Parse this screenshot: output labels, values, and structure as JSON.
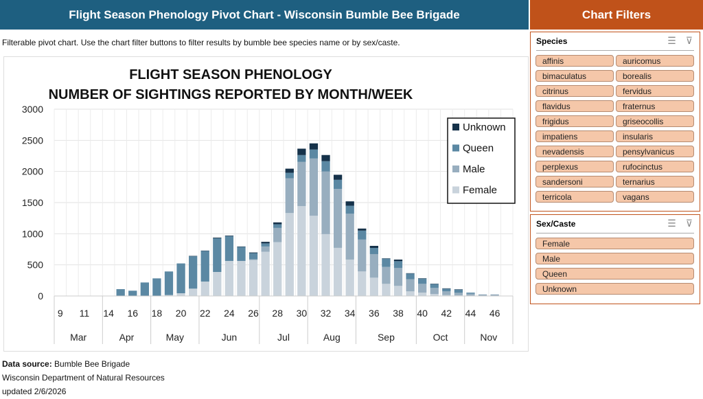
{
  "header": {
    "title": "Flight Season Phenology Pivot Chart - Wisconsin Bumble Bee Brigade",
    "filters_title": "Chart Filters"
  },
  "subtitle": "Filterable pivot chart. Use the chart filter buttons to filter results by bumble bee species name or by sex/caste.",
  "filters": {
    "species": {
      "title": "Species",
      "icons": [
        "multi-select-icon",
        "clear-filter-icon"
      ],
      "items": [
        "affinis",
        "auricomus",
        "bimaculatus",
        "borealis",
        "citrinus",
        "fervidus",
        "flavidus",
        "fraternus",
        "frigidus",
        "griseocollis",
        "impatiens",
        "insularis",
        "nevadensis",
        "pensylvanicus",
        "perplexus",
        "rufocinctus",
        "sandersoni",
        "ternarius",
        "terricola",
        "vagans"
      ]
    },
    "sex_caste": {
      "title": "Sex/Caste",
      "icons": [
        "multi-select-icon",
        "clear-filter-icon"
      ],
      "items": [
        "Female",
        "Male",
        "Queen",
        "Unknown"
      ]
    }
  },
  "footer": {
    "source_label": "Data source:",
    "source_value": "Bumble Bee Brigade",
    "org": "Wisconsin Department of Natural Resources",
    "updated": "updated 2/6/2026"
  },
  "chart_data": {
    "type": "bar",
    "stacked": true,
    "title": [
      "FLIGHT SEASON PHENOLOGY",
      "NUMBER OF SIGHTINGS REPORTED BY MONTH/WEEK"
    ],
    "ylim": [
      0,
      3000
    ],
    "yticks": [
      "0",
      "500",
      "1000",
      "1500",
      "2000",
      "2500",
      "3000"
    ],
    "grid": true,
    "legend_position": "top-right",
    "weeks": [
      9,
      10,
      11,
      12,
      14,
      15,
      16,
      17,
      18,
      19,
      20,
      21,
      22,
      23,
      24,
      25,
      26,
      27,
      28,
      29,
      30,
      31,
      32,
      33,
      34,
      35,
      36,
      37,
      38,
      39,
      40,
      41,
      42,
      43,
      44,
      45,
      46,
      47
    ],
    "week_tick_labels": [
      "9",
      "11",
      "14",
      "16",
      "18",
      "20",
      "22",
      "24",
      "26",
      "28",
      "30",
      "32",
      "34",
      "36",
      "38",
      "40",
      "42",
      "44",
      "46"
    ],
    "months": [
      {
        "name": "Mar",
        "weeks": 4
      },
      {
        "name": "Apr",
        "weeks": 4
      },
      {
        "name": "May",
        "weeks": 4
      },
      {
        "name": "Jun",
        "weeks": 5
      },
      {
        "name": "Jul",
        "weeks": 4
      },
      {
        "name": "Aug",
        "weeks": 4
      },
      {
        "name": "Sep",
        "weeks": 5
      },
      {
        "name": "Oct",
        "weeks": 4
      },
      {
        "name": "Nov",
        "weeks": 4
      }
    ],
    "series": [
      {
        "name": "Female",
        "color": "#c9d3dc",
        "values": [
          0,
          0,
          0,
          0,
          0,
          0,
          0,
          0,
          0,
          15,
          44,
          118,
          232,
          386,
          563,
          563,
          578,
          710,
          865,
          1332,
          1443,
          1288,
          994,
          773,
          585,
          394,
          294,
          195,
          162,
          74,
          55,
          33,
          15,
          11,
          7,
          4,
          4,
          0
        ]
      },
      {
        "name": "Male",
        "color": "#98aebf",
        "values": [
          0,
          0,
          0,
          0,
          0,
          0,
          0,
          0,
          0,
          0,
          0,
          0,
          0,
          0,
          0,
          0,
          10,
          85,
          228,
          559,
          710,
          920,
          1005,
          946,
          736,
          512,
          379,
          272,
          287,
          195,
          140,
          96,
          59,
          40,
          29,
          22,
          22,
          0
        ]
      },
      {
        "name": "Queen",
        "color": "#5b88a3",
        "values": [
          0,
          0,
          0,
          0,
          0,
          110,
          85,
          217,
          283,
          379,
          479,
          521,
          492,
          542,
          400,
          226,
          101,
          50,
          59,
          88,
          110,
          144,
          166,
          147,
          129,
          144,
          99,
          133,
          110,
          92,
          85,
          63,
          44,
          52,
          18,
          0,
          0,
          0
        ]
      },
      {
        "name": "Unknown",
        "color": "#16324a",
        "values": [
          0,
          0,
          0,
          0,
          0,
          0,
          0,
          0,
          0,
          0,
          0,
          5,
          5,
          10,
          8,
          6,
          10,
          25,
          30,
          66,
          103,
          99,
          99,
          81,
          70,
          33,
          33,
          5,
          26,
          5,
          5,
          5,
          5,
          5,
          0,
          0,
          0,
          0
        ]
      }
    ]
  }
}
